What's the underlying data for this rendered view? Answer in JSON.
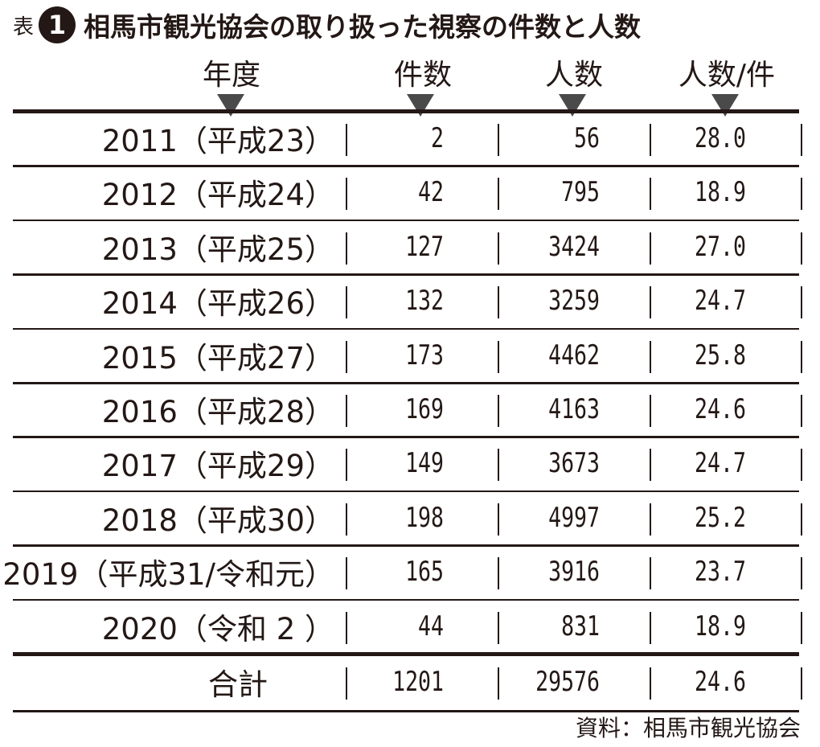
{
  "title": {
    "prefix": "表",
    "number": "1",
    "text": "相馬市観光協会の取り扱った視察の件数と人数"
  },
  "columns": [
    "年度",
    "件数",
    "人数",
    "人数/件"
  ],
  "rows": [
    {
      "year": "2011（平成23）",
      "count": "2",
      "people": "56",
      "ratio": "28.0"
    },
    {
      "year": "2012（平成24）",
      "count": "42",
      "people": "795",
      "ratio": "18.9"
    },
    {
      "year": "2013（平成25）",
      "count": "127",
      "people": "3424",
      "ratio": "27.0"
    },
    {
      "year": "2014（平成26）",
      "count": "132",
      "people": "3259",
      "ratio": "24.7"
    },
    {
      "year": "2015（平成27）",
      "count": "173",
      "people": "4462",
      "ratio": "25.8"
    },
    {
      "year": "2016（平成28）",
      "count": "169",
      "people": "4163",
      "ratio": "24.6"
    },
    {
      "year": "2017（平成29）",
      "count": "149",
      "people": "3673",
      "ratio": "24.7"
    },
    {
      "year": "2018（平成30）",
      "count": "198",
      "people": "4997",
      "ratio": "25.2"
    },
    {
      "year": "2019（平成31/令和元）",
      "count": "165",
      "people": "3916",
      "ratio": "23.7"
    },
    {
      "year": "2020（令和 2 ）",
      "count": "44",
      "people": "831",
      "ratio": "18.9"
    }
  ],
  "total": {
    "year": "合計",
    "count": "1201",
    "people": "29576",
    "ratio": "24.6"
  },
  "source": "資料：相馬市観光協会"
}
